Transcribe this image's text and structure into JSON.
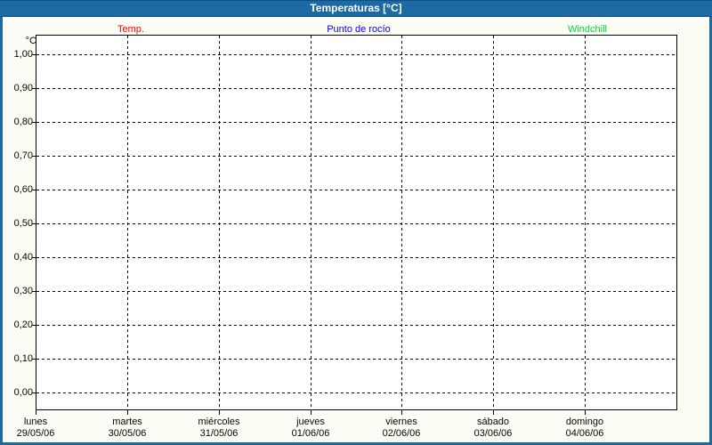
{
  "window": {
    "title": "Temperaturas [°C]"
  },
  "colors": {
    "titlebar_bg": "#1c6aa3",
    "titlebar_text": "#ffffff",
    "frame_border": "#1c6aa3",
    "panel_bg": "#fdfdf6",
    "plot_bg": "#ffffff",
    "grid": "#000000",
    "axis_text": "#050509"
  },
  "chart_data": {
    "type": "line",
    "title": "Temperaturas [°C]",
    "grid": "dashed",
    "legend_position": "top",
    "y_axis": {
      "unit": "°C",
      "min": 0.0,
      "max": 1.0,
      "step": 0.1,
      "ticks": [
        {
          "label": "1,00",
          "value": 1.0
        },
        {
          "label": "0,90",
          "value": 0.9
        },
        {
          "label": "0,80",
          "value": 0.8
        },
        {
          "label": "0,70",
          "value": 0.7
        },
        {
          "label": "0,60",
          "value": 0.6
        },
        {
          "label": "0,50",
          "value": 0.5
        },
        {
          "label": "0,40",
          "value": 0.4
        },
        {
          "label": "0,30",
          "value": 0.3
        },
        {
          "label": "0,20",
          "value": 0.2
        },
        {
          "label": "0,10",
          "value": 0.1
        },
        {
          "label": "0,00",
          "value": 0.0
        }
      ]
    },
    "x_axis": {
      "categories": [
        {
          "day": "lunes",
          "date": "29/05/06"
        },
        {
          "day": "martes",
          "date": "30/05/06"
        },
        {
          "day": "miércoles",
          "date": "31/05/06"
        },
        {
          "day": "jueves",
          "date": "01/06/06"
        },
        {
          "day": "viernes",
          "date": "02/06/06"
        },
        {
          "day": "sábado",
          "date": "03/06/06"
        },
        {
          "day": "domingo",
          "date": "04/06/06"
        }
      ]
    },
    "series": [
      {
        "name": "Temp.",
        "color": "#ff0000",
        "values": []
      },
      {
        "name": "Punto de rocío",
        "color": "#0000ff",
        "values": []
      },
      {
        "name": "Windchill",
        "color": "#00d93c",
        "values": []
      }
    ]
  }
}
